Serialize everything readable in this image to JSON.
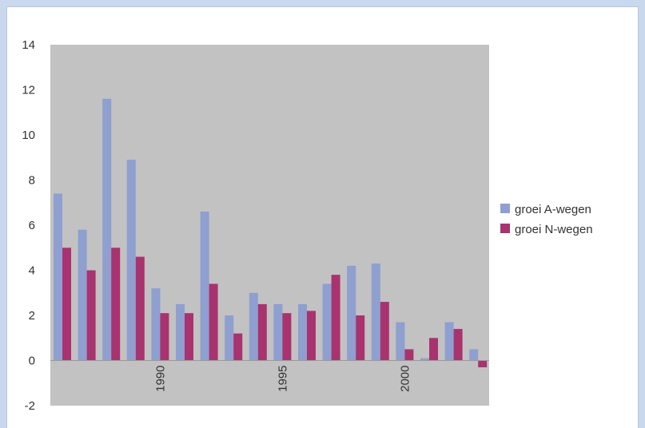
{
  "chart_data": {
    "type": "bar",
    "title": "",
    "xlabel": "",
    "ylabel": "",
    "ylim": [
      -2,
      14
    ],
    "yticks": [
      14,
      12,
      10,
      8,
      6,
      4,
      2,
      0,
      -2
    ],
    "x": [
      1986,
      1987,
      1988,
      1989,
      1990,
      1991,
      1992,
      1993,
      1994,
      1995,
      1996,
      1997,
      1998,
      1999,
      2000,
      2001,
      2002,
      2003
    ],
    "xtick_labels": [
      {
        "year": 1990,
        "label": "1990"
      },
      {
        "year": 1995,
        "label": "1995"
      },
      {
        "year": 2000,
        "label": "2000"
      }
    ],
    "series": [
      {
        "name": "groei A-wegen",
        "color": "#8e9fd0",
        "values": [
          7.4,
          5.8,
          11.6,
          8.9,
          3.2,
          2.5,
          6.6,
          2.0,
          3.0,
          2.5,
          2.5,
          3.4,
          4.2,
          4.3,
          1.7,
          0.1,
          1.7,
          0.5
        ]
      },
      {
        "name": "groei N-wegen",
        "color": "#a8336e",
        "values": [
          5.0,
          4.0,
          5.0,
          4.6,
          2.1,
          2.1,
          3.4,
          1.2,
          2.5,
          2.1,
          2.2,
          3.8,
          2.0,
          2.6,
          0.5,
          1.0,
          1.4,
          -0.3
        ]
      }
    ],
    "plot_background": "#c2c2c2",
    "grid": false,
    "legend_position": "right"
  }
}
